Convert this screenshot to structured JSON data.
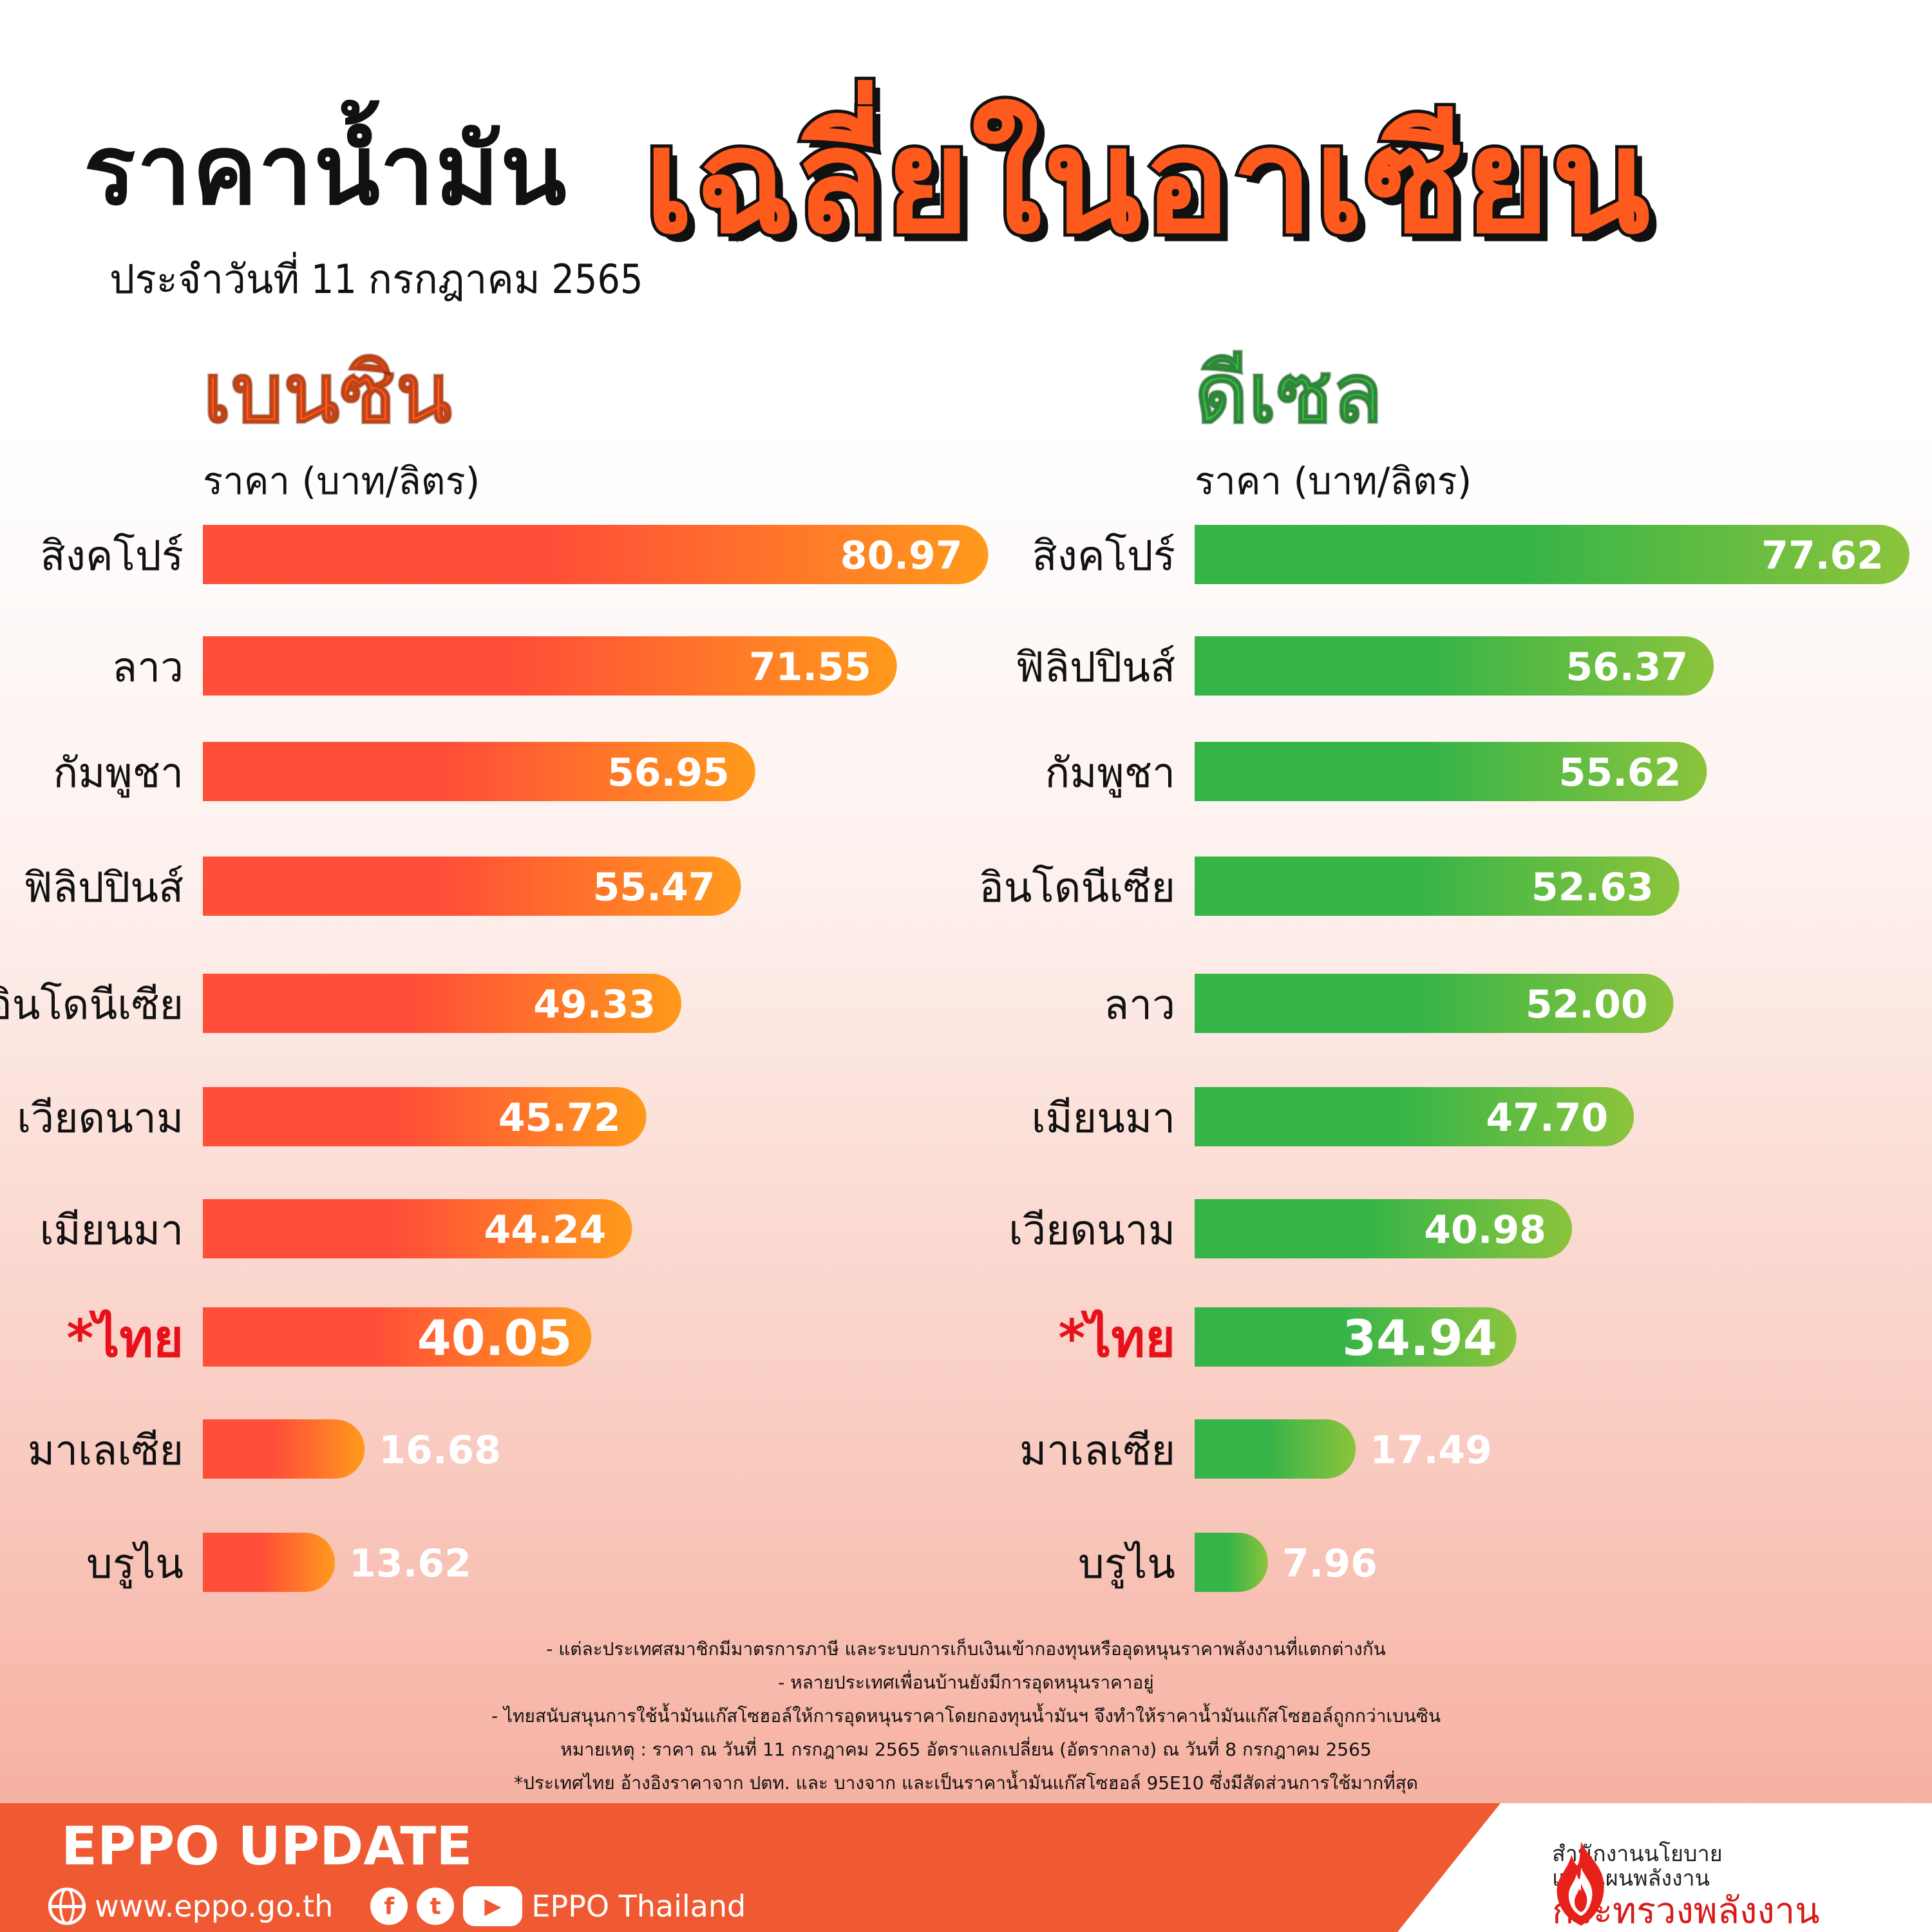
{
  "header": {
    "title": "ราคาน้ำมัน",
    "date": "ประจำวันที่ 11 กรกฎาคม 2565",
    "accent": "เฉลี่ยในอาเซียน"
  },
  "colors": {
    "benzin_start": "#ff4f38",
    "benzin_end": "#ff9a1c",
    "diesel_start": "#35b448",
    "diesel_end": "#8cc43c",
    "thai_label": "#e8101a",
    "accent": "#ff5a1e",
    "footer": "#f05a32"
  },
  "chart_data": [
    {
      "type": "bar",
      "title": "เบนซิน",
      "ylabel": "ราคา (บาท/ลิตร)",
      "categories": [
        "สิงคโปร์",
        "ลาว",
        "กัมพูชา",
        "ฟิลิปปินส์",
        "อินโดนีเซีย",
        "เวียดนาม",
        "เมียนมา",
        "*ไทย",
        "มาเลเซีย",
        "บรูไน"
      ],
      "values": [
        80.97,
        71.55,
        56.95,
        55.47,
        49.33,
        45.72,
        44.24,
        40.05,
        16.68,
        13.62
      ],
      "value_labels": [
        "80.97",
        "71.55",
        "56.95",
        "55.47",
        "49.33",
        "45.72",
        "44.24",
        "40.05",
        "16.68",
        "13.62"
      ],
      "highlight": "*ไทย",
      "xlim": [
        0,
        81
      ]
    },
    {
      "type": "bar",
      "title": "ดีเซล",
      "ylabel": "ราคา (บาท/ลิตร)",
      "categories": [
        "สิงคโปร์",
        "ฟิลิปปินส์",
        "กัมพูชา",
        "อินโดนีเซีย",
        "ลาว",
        "เมียนมา",
        "เวียดนาม",
        "*ไทย",
        "มาเลเซีย",
        "บรูไน"
      ],
      "values": [
        77.62,
        56.37,
        55.62,
        52.63,
        52.0,
        47.7,
        40.98,
        34.94,
        17.49,
        7.96
      ],
      "value_labels": [
        "77.62",
        "56.37",
        "55.62",
        "52.63",
        "52.00",
        "47.70",
        "40.98",
        "34.94",
        "17.49",
        "7.96"
      ],
      "highlight": "*ไทย",
      "xlim": [
        0,
        77.62
      ]
    }
  ],
  "notes": [
    "- แต่ละประเทศสมาชิกมีมาตรการภาษี และระบบการเก็บเงินเข้ากองทุนหรืออุดหนุนราคาพลังงานที่แตกต่างกัน",
    "- หลายประเทศเพื่อนบ้านยังมีการอุดหนุนราคาอยู่",
    "- ไทยสนับสนุนการใช้น้ำมันแก๊สโซฮอล์ให้การอุดหนุนราคาโดยกองทุนน้ำมันฯ จึงทำให้ราคาน้ำมันแก๊สโซฮอล์ถูกกว่าเบนซิน",
    "หมายเหตุ : ราคา ณ วันที่ 11 กรกฎาคม 2565 อัตราแลกเปลี่ยน (อัตรากลาง) ณ วันที่ 8 กรกฎาคม 2565",
    "*ประเทศไทย อ้างอิงราคาจาก ปตท. และ บางจาก และเป็นราคาน้ำมันแก๊สโซฮอล์ 95E10 ซึ่งมีสัดส่วนการใช้มากที่สุด"
  ],
  "footer": {
    "brand": "EPPO UPDATE",
    "website": "www.eppo.go.th",
    "social_name": "EPPO Thailand",
    "facebook_glyph": "f",
    "twitter_glyph": "t",
    "youtube_glyph": "▶",
    "org_line1": "สำนักงานนโยบาย",
    "org_line2": "และแผนพลังงาน",
    "org_line3": "กระทรวงพลังงาน"
  }
}
